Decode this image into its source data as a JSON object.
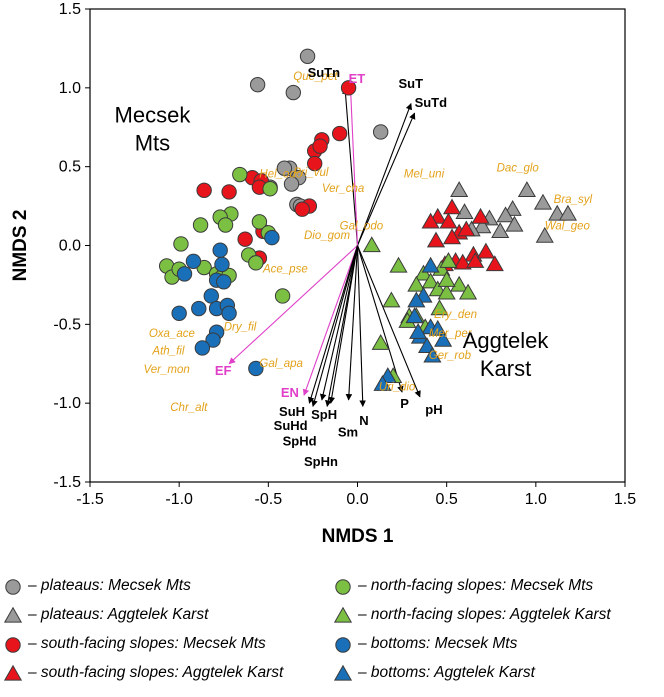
{
  "chart_data": {
    "type": "scatter",
    "xlabel": "NMDS 1",
    "ylabel": "NMDS 2",
    "xlim": [
      -1.5,
      1.5
    ],
    "ylim": [
      -1.5,
      1.5
    ],
    "xticks": [
      -1.5,
      -1.0,
      -0.5,
      0.0,
      0.5,
      1.0,
      1.5
    ],
    "yticks": [
      -1.5,
      -1.0,
      -0.5,
      0.0,
      0.5,
      1.0,
      1.5
    ],
    "tick_labels_x": [
      "-1.5",
      "-1.0",
      "-0.5",
      "0.0",
      "0.5",
      "1.0",
      "1.5"
    ],
    "tick_labels_y": [
      "-1.5",
      "-1.0",
      "-0.5",
      "0.0",
      "0.5",
      "1.0",
      "1.5"
    ],
    "grid": false,
    "region_labels": [
      {
        "line1": "Mecsek",
        "line2": "Mts",
        "x": -1.15,
        "y": 0.78
      },
      {
        "line1": "Aggtelek",
        "line2": "Karst",
        "x": 0.83,
        "y": -0.65
      }
    ],
    "series": [
      {
        "name": "plateaus: Mecsek Mts",
        "marker": "circle",
        "color": "#9a9a9a",
        "points": [
          [
            -0.28,
            1.2
          ],
          [
            -0.56,
            1.02
          ],
          [
            -0.36,
            0.97
          ],
          [
            0.13,
            0.72
          ],
          [
            -0.38,
            0.49
          ],
          [
            -0.41,
            0.49
          ],
          [
            -0.33,
            0.43
          ],
          [
            -0.37,
            0.39
          ],
          [
            -0.49,
            0.37
          ],
          [
            -0.34,
            0.26
          ],
          [
            -0.32,
            0.25
          ]
        ]
      },
      {
        "name": "plateaus: Aggtelek Karst",
        "marker": "triangle",
        "color": "#9a9a9a",
        "points": [
          [
            0.57,
            0.35
          ],
          [
            0.95,
            0.35
          ],
          [
            1.04,
            0.27
          ],
          [
            0.87,
            0.23
          ],
          [
            0.6,
            0.21
          ],
          [
            0.83,
            0.19
          ],
          [
            0.74,
            0.17
          ],
          [
            1.12,
            0.2
          ],
          [
            1.18,
            0.2
          ],
          [
            0.88,
            0.13
          ],
          [
            0.7,
            0.12
          ],
          [
            0.64,
            0.1
          ],
          [
            0.8,
            0.09
          ],
          [
            1.05,
            0.06
          ]
        ]
      },
      {
        "name": "south-facing slopes: Mecsek Mts",
        "marker": "circle",
        "color": "#e8141c",
        "points": [
          [
            -0.05,
            1.0
          ],
          [
            -0.2,
            0.67
          ],
          [
            -0.1,
            0.71
          ],
          [
            -0.24,
            0.6
          ],
          [
            -0.24,
            0.52
          ],
          [
            -0.59,
            0.43
          ],
          [
            -0.54,
            0.41
          ],
          [
            -0.86,
            0.35
          ],
          [
            -0.72,
            0.34
          ],
          [
            -0.55,
            0.37
          ],
          [
            -0.27,
            0.25
          ],
          [
            -0.31,
            0.23
          ],
          [
            -0.53,
            0.09
          ],
          [
            -0.63,
            0.04
          ],
          [
            -0.55,
            -0.08
          ],
          [
            -0.21,
            0.63
          ]
        ]
      },
      {
        "name": "south-facing slopes: Aggtelek Karst",
        "marker": "triangle",
        "color": "#e8141c",
        "points": [
          [
            0.53,
            0.24
          ],
          [
            0.45,
            0.18
          ],
          [
            0.51,
            0.15
          ],
          [
            0.41,
            0.15
          ],
          [
            0.57,
            0.08
          ],
          [
            0.61,
            0.1
          ],
          [
            0.53,
            0.05
          ],
          [
            0.44,
            0.03
          ],
          [
            0.65,
            -0.06
          ],
          [
            0.55,
            -0.1
          ],
          [
            0.59,
            -0.11
          ],
          [
            0.66,
            -0.1
          ],
          [
            0.72,
            -0.04
          ],
          [
            0.49,
            -0.12
          ],
          [
            0.77,
            -0.12
          ],
          [
            0.69,
            0.18
          ]
        ]
      },
      {
        "name": "north-facing slopes: Mecsek Mts",
        "marker": "circle",
        "color": "#7cc043",
        "points": [
          [
            -0.66,
            0.45
          ],
          [
            -0.49,
            0.36
          ],
          [
            -0.71,
            0.2
          ],
          [
            -0.77,
            0.18
          ],
          [
            -0.55,
            0.15
          ],
          [
            -0.88,
            0.13
          ],
          [
            -0.74,
            0.13
          ],
          [
            -0.5,
            0.08
          ],
          [
            -0.99,
            0.01
          ],
          [
            -0.61,
            -0.06
          ],
          [
            -1.07,
            -0.13
          ],
          [
            -0.86,
            -0.14
          ],
          [
            -1.04,
            -0.2
          ],
          [
            -1.0,
            -0.15
          ],
          [
            -0.79,
            -0.18
          ],
          [
            -0.57,
            -0.11
          ],
          [
            -0.76,
            -0.2
          ],
          [
            -0.72,
            -0.19
          ],
          [
            -0.42,
            -0.32
          ]
        ]
      },
      {
        "name": "north-facing slopes: Aggtelek Karst",
        "marker": "triangle",
        "color": "#7cc043",
        "points": [
          [
            0.08,
            0.0
          ],
          [
            0.23,
            -0.13
          ],
          [
            0.37,
            -0.18
          ],
          [
            0.33,
            -0.25
          ],
          [
            0.19,
            -0.35
          ],
          [
            0.41,
            -0.23
          ],
          [
            0.45,
            -0.28
          ],
          [
            0.5,
            -0.3
          ],
          [
            0.57,
            -0.25
          ],
          [
            0.33,
            -0.45
          ],
          [
            0.46,
            -0.4
          ],
          [
            0.13,
            -0.62
          ],
          [
            0.29,
            -0.45
          ],
          [
            0.47,
            -0.15
          ],
          [
            0.5,
            -0.22
          ],
          [
            0.62,
            -0.3
          ],
          [
            0.28,
            -0.48
          ],
          [
            0.38,
            -0.52
          ],
          [
            0.2,
            -0.83
          ],
          [
            0.51,
            -0.1
          ]
        ]
      },
      {
        "name": "bottoms: Mecsek Mts",
        "marker": "circle",
        "color": "#1a70b8",
        "points": [
          [
            -0.77,
            -0.03
          ],
          [
            -0.76,
            -0.12
          ],
          [
            -0.92,
            -0.1
          ],
          [
            -0.97,
            -0.18
          ],
          [
            -0.79,
            -0.22
          ],
          [
            -0.75,
            -0.23
          ],
          [
            -0.82,
            -0.32
          ],
          [
            -0.79,
            -0.4
          ],
          [
            -0.73,
            -0.38
          ],
          [
            -0.89,
            -0.4
          ],
          [
            -1.0,
            -0.43
          ],
          [
            -0.72,
            -0.43
          ],
          [
            -0.79,
            -0.55
          ],
          [
            -0.81,
            -0.6
          ],
          [
            -0.87,
            -0.65
          ],
          [
            -0.48,
            0.05
          ],
          [
            -0.57,
            -0.78
          ]
        ]
      },
      {
        "name": "bottoms: Aggtelek Karst",
        "marker": "triangle",
        "color": "#1a70b8",
        "points": [
          [
            0.41,
            -0.13
          ],
          [
            0.37,
            -0.32
          ],
          [
            0.33,
            -0.35
          ],
          [
            0.32,
            -0.45
          ],
          [
            0.41,
            -0.52
          ],
          [
            0.35,
            -0.58
          ],
          [
            0.39,
            -0.64
          ],
          [
            0.42,
            -0.7
          ],
          [
            0.17,
            -0.83
          ],
          [
            0.14,
            -0.88
          ],
          [
            0.45,
            -0.53
          ],
          [
            0.48,
            -0.6
          ],
          [
            0.34,
            -0.55
          ]
        ]
      }
    ],
    "species_labels": [
      {
        "text": "Que_pet",
        "x": -0.36,
        "y": 1.05
      },
      {
        "text": "Pri_vul",
        "x": -0.36,
        "y": 0.44
      },
      {
        "text": "Ver_cha",
        "x": -0.2,
        "y": 0.34
      },
      {
        "text": "Hel_odo",
        "x": -0.55,
        "y": 0.43
      },
      {
        "text": "Dio_gom",
        "x": -0.3,
        "y": 0.04
      },
      {
        "text": "Gal_odo",
        "x": -0.1,
        "y": 0.1
      },
      {
        "text": "Ace_pse",
        "x": -0.53,
        "y": -0.17
      },
      {
        "text": "Dry_fil",
        "x": -0.75,
        "y": -0.54
      },
      {
        "text": "Oxa_ace",
        "x": -1.17,
        "y": -0.58
      },
      {
        "text": "Ath_fil",
        "x": -1.15,
        "y": -0.69
      },
      {
        "text": "Ver_mon",
        "x": -1.2,
        "y": -0.81
      },
      {
        "text": "Gal_apa",
        "x": -0.55,
        "y": -0.77
      },
      {
        "text": "Chr_alt",
        "x": -1.05,
        "y": -1.05
      },
      {
        "text": "Mel_uni",
        "x": 0.26,
        "y": 0.43
      },
      {
        "text": "Dac_glo",
        "x": 0.78,
        "y": 0.47
      },
      {
        "text": "Bra_syl",
        "x": 1.1,
        "y": 0.27
      },
      {
        "text": "Wal_geo",
        "x": 1.05,
        "y": 0.1
      },
      {
        "text": "Ery_den",
        "x": 0.43,
        "y": -0.46
      },
      {
        "text": "Mer_per",
        "x": 0.4,
        "y": -0.58
      },
      {
        "text": "Ger_rob",
        "x": 0.4,
        "y": -0.72
      },
      {
        "text": "Uri_dio",
        "x": 0.12,
        "y": -0.92
      }
    ],
    "vectors": [
      {
        "label": "SuTn",
        "color": "#000000",
        "end": [
          -0.07,
          1.0
        ],
        "lx": -0.28,
        "ly": 1.07
      },
      {
        "label": "SuT",
        "color": "#000000",
        "end": [
          0.3,
          0.9
        ],
        "lx": 0.23,
        "ly": 1.0
      },
      {
        "label": "SuTd",
        "color": "#000000",
        "end": [
          0.32,
          0.84
        ],
        "lx": 0.32,
        "ly": 0.88
      },
      {
        "label": "ET",
        "color": "#e040c8",
        "end": [
          -0.04,
          1.02
        ],
        "lx": -0.05,
        "ly": 1.03
      },
      {
        "label": "EF",
        "color": "#e040c8",
        "end": [
          -0.72,
          -0.75
        ],
        "lx": -0.8,
        "ly": -0.82
      },
      {
        "label": "EN",
        "color": "#e040c8",
        "end": [
          -0.3,
          -0.95
        ],
        "lx": -0.43,
        "ly": -0.96
      },
      {
        "label": "SuH",
        "color": "#000000",
        "end": [
          -0.27,
          -1.0
        ],
        "lx": -0.44,
        "ly": -1.08
      },
      {
        "label": "SuHd",
        "color": "#000000",
        "end": [
          -0.25,
          -1.02
        ],
        "lx": -0.47,
        "ly": -1.17
      },
      {
        "label": "SpH",
        "color": "#000000",
        "end": [
          -0.2,
          -0.98
        ],
        "lx": -0.26,
        "ly": -1.1
      },
      {
        "label": "SpHd",
        "color": "#000000",
        "end": [
          -0.17,
          -1.02
        ],
        "lx": -0.42,
        "ly": -1.27
      },
      {
        "label": "SpHn",
        "color": "#000000",
        "end": [
          -0.15,
          -1.0
        ],
        "lx": -0.3,
        "ly": -1.4
      },
      {
        "label": "Sm",
        "color": "#000000",
        "end": [
          -0.05,
          -0.98
        ],
        "lx": -0.11,
        "ly": -1.21
      },
      {
        "label": "N",
        "color": "#000000",
        "end": [
          0.03,
          -1.02
        ],
        "lx": 0.01,
        "ly": -1.14
      },
      {
        "label": "P",
        "color": "#000000",
        "end": [
          0.25,
          -0.93
        ],
        "lx": 0.24,
        "ly": -1.03
      },
      {
        "label": "pH",
        "color": "#000000",
        "end": [
          0.35,
          -0.96
        ],
        "lx": 0.38,
        "ly": -1.07
      }
    ]
  },
  "legend": [
    {
      "marker": "circle",
      "color": "#9a9a9a",
      "text": "– plateaus: Mecsek Mts"
    },
    {
      "marker": "circle",
      "color": "#7cc043",
      "text": "– north-facing slopes: Mecsek Mts"
    },
    {
      "marker": "triangle",
      "color": "#9a9a9a",
      "text": "– plateaus: Aggtelek Karst"
    },
    {
      "marker": "triangle",
      "color": "#7cc043",
      "text": "– north-facing slopes: Aggtelek Karst"
    },
    {
      "marker": "circle",
      "color": "#e8141c",
      "text": "– south-facing slopes: Mecsek Mts"
    },
    {
      "marker": "circle",
      "color": "#1a70b8",
      "text": "– bottoms: Mecsek Mts"
    },
    {
      "marker": "triangle",
      "color": "#e8141c",
      "text": "– south-facing slopes: Aggtelek Karst"
    },
    {
      "marker": "triangle",
      "color": "#1a70b8",
      "text": "– bottoms: Aggtelek Karst"
    }
  ]
}
